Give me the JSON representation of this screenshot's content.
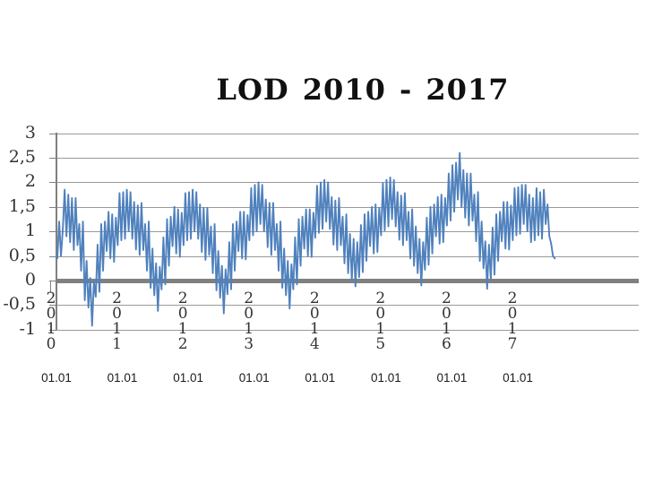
{
  "title": "LOD 2010 - 2017",
  "colors": {
    "line": "#4f81bd",
    "grid": "#9a9a9a",
    "zero_line": "#808080",
    "axis": "#808080",
    "label_text": "#333333",
    "background": "#ffffff"
  },
  "y_axis": {
    "tick_labels": [
      "3",
      "2,5",
      "2",
      "1,5",
      "1",
      "0,5",
      "0",
      "-0,5",
      "-1"
    ],
    "tick_values": [
      3,
      2.5,
      2,
      1.5,
      1,
      0.5,
      0,
      -0.5,
      -1
    ]
  },
  "x_axis": {
    "years": [
      "2010",
      "2011",
      "2012",
      "2013",
      "2014",
      "2015",
      "2016",
      "2017"
    ],
    "sub_labels": [
      "01.01",
      "01.01",
      "01.01",
      "01.01",
      "01.01",
      "01.01",
      "01.01",
      "01.01"
    ]
  },
  "chart_data": {
    "type": "line",
    "title": "LOD 2010 - 2017",
    "xlabel": "",
    "ylabel": "",
    "ylim": [
      -1,
      3
    ],
    "y_ticks": [
      3,
      2.5,
      2,
      1.5,
      1,
      0.5,
      0,
      -0.5,
      -1
    ],
    "x_start_year": 2010,
    "x_step_years": 0.027778,
    "x_tick_years": [
      "2010",
      "2011",
      "2012",
      "2013",
      "2014",
      "2015",
      "2016",
      "2017"
    ],
    "x_tick_sub_label": "01.01",
    "grid": true,
    "legend": false,
    "series": [
      {
        "name": "LOD",
        "color": "#4f81bd",
        "values": [
          0.45,
          1.2,
          0.5,
          1.05,
          1.85,
          0.9,
          1.75,
          0.78,
          1.68,
          0.62,
          1.68,
          0.72,
          1.15,
          0.2,
          1.2,
          -0.4,
          0.4,
          -0.55,
          0.05,
          -0.92,
          -0.02,
          -0.33,
          0.73,
          -0.23,
          1.15,
          0.2,
          1.2,
          0.6,
          1.4,
          0.45,
          1.35,
          0.38,
          1.28,
          0.72,
          1.78,
          0.82,
          1.8,
          0.85,
          1.85,
          1.0,
          1.8,
          0.85,
          1.6,
          0.63,
          1.53,
          0.52,
          1.58,
          0.62,
          1.15,
          0.2,
          1.2,
          -0.15,
          0.65,
          -0.3,
          0.35,
          -0.62,
          0.28,
          -0.18,
          0.88,
          -0.08,
          1.25,
          0.3,
          1.3,
          0.7,
          1.5,
          0.55,
          1.45,
          0.48,
          1.38,
          0.72,
          1.78,
          0.82,
          1.8,
          0.85,
          1.85,
          1.0,
          1.8,
          0.85,
          1.55,
          0.58,
          1.48,
          0.42,
          1.48,
          0.52,
          1.1,
          0.15,
          1.15,
          -0.2,
          0.6,
          -0.35,
          0.3,
          -0.67,
          0.23,
          -0.28,
          0.78,
          -0.18,
          1.15,
          0.2,
          1.2,
          0.6,
          1.4,
          0.45,
          1.4,
          0.43,
          1.33,
          0.82,
          1.88,
          0.92,
          1.95,
          1.0,
          2.0,
          1.15,
          1.95,
          1.0,
          1.65,
          0.68,
          1.58,
          0.52,
          1.58,
          0.62,
          1.15,
          0.2,
          1.2,
          -0.15,
          0.65,
          -0.3,
          0.4,
          -0.57,
          0.33,
          -0.18,
          0.88,
          -0.08,
          1.25,
          0.3,
          1.3,
          0.65,
          1.45,
          0.5,
          1.45,
          0.48,
          1.38,
          0.87,
          1.93,
          0.97,
          2.0,
          1.05,
          2.05,
          1.2,
          2.0,
          1.05,
          1.7,
          0.73,
          1.63,
          0.62,
          1.68,
          0.72,
          1.3,
          0.35,
          1.35,
          0.15,
          0.95,
          0.0,
          0.85,
          -0.12,
          0.78,
          0.07,
          1.13,
          0.17,
          1.35,
          0.4,
          1.4,
          0.7,
          1.5,
          0.55,
          1.55,
          0.58,
          1.48,
          0.92,
          1.98,
          1.02,
          2.05,
          1.1,
          2.1,
          1.25,
          2.05,
          1.1,
          1.8,
          0.83,
          1.73,
          0.72,
          1.78,
          0.82,
          1.4,
          0.45,
          1.45,
          0.3,
          1.1,
          0.15,
          0.85,
          -0.1,
          0.78,
          0.22,
          1.28,
          0.32,
          1.5,
          0.55,
          1.55,
          0.9,
          1.7,
          0.75,
          1.75,
          0.78,
          1.68,
          1.12,
          2.18,
          1.22,
          2.35,
          1.4,
          2.4,
          1.65,
          2.6,
          1.5,
          2.25,
          1.28,
          2.18,
          1.12,
          2.18,
          1.22,
          1.75,
          0.8,
          1.8,
          0.4,
          1.2,
          0.25,
          0.8,
          -0.17,
          0.73,
          0.02,
          1.08,
          0.12,
          1.35,
          0.4,
          1.4,
          0.8,
          1.6,
          0.65,
          1.6,
          0.63,
          1.53,
          0.82,
          1.88,
          0.92,
          1.9,
          0.95,
          1.95,
          1.15,
          1.95,
          1.0,
          1.75,
          0.78,
          1.68,
          0.82,
          1.88,
          0.92,
          1.8,
          0.85,
          1.85,
          1.15,
          1.55,
          0.9,
          0.75,
          0.5,
          0.45
        ]
      }
    ]
  }
}
